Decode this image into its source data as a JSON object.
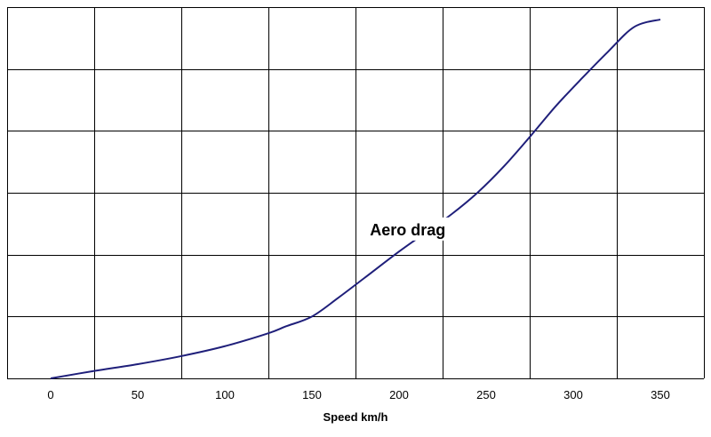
{
  "chart_data": {
    "type": "line",
    "title": "",
    "xlabel": "Speed km/h",
    "ylabel": "",
    "xlim": [
      -25,
      375
    ],
    "ylim": [
      0,
      6
    ],
    "x_ticks": [
      0,
      50,
      100,
      150,
      200,
      250,
      300,
      350
    ],
    "y_gridlines": 6,
    "grid": true,
    "series": [
      {
        "color": "#1f1f7a",
        "x": [
          0,
          25,
          50,
          75,
          100,
          125,
          135,
          150,
          165,
          180,
          200,
          215,
          230,
          245,
          260,
          275,
          290,
          305,
          320,
          335,
          350
        ],
        "y": [
          0.0,
          0.12,
          0.23,
          0.36,
          0.52,
          0.73,
          0.84,
          1.0,
          1.3,
          1.62,
          2.05,
          2.35,
          2.65,
          3.0,
          3.42,
          3.9,
          4.4,
          4.85,
          5.28,
          5.68,
          5.8
        ]
      }
    ],
    "annotations": [
      {
        "text": "Aero drag",
        "x": 205,
        "y": 2.4
      }
    ]
  }
}
